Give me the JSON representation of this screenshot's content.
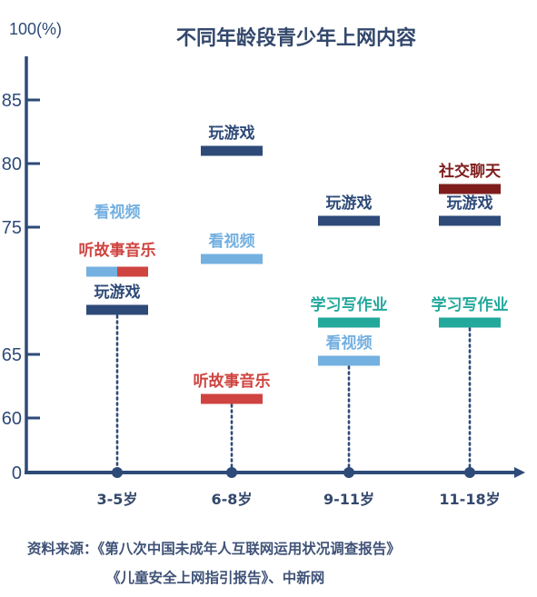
{
  "chart_data": {
    "type": "range-markers",
    "title": "不同年龄段青少年上网内容",
    "y_axis_label": "100(%)",
    "y_ticks": [
      {
        "value": 85,
        "label": "85"
      },
      {
        "value": 80,
        "label": "80"
      },
      {
        "value": 75,
        "label": "75"
      },
      {
        "value": 65,
        "label": "65"
      },
      {
        "value": 60,
        "label": "60"
      },
      {
        "value": 0,
        "label": "0"
      }
    ],
    "categories": [
      "3-5岁",
      "6-8岁",
      "9-11岁",
      "11-18岁"
    ],
    "groups": [
      {
        "category": "3-5岁",
        "markers": [
          {
            "name": "看视频",
            "value": 71.5,
            "color": "#74b0e0",
            "segment": "left"
          },
          {
            "name": "听故事音乐",
            "value": 71.5,
            "color": "#cf4440",
            "segment": "right"
          },
          {
            "name": "玩游戏",
            "value": 68.5,
            "color": "#2e4a78"
          }
        ]
      },
      {
        "category": "6-8岁",
        "markers": [
          {
            "name": "玩游戏",
            "value": 81.0,
            "color": "#2e4a78"
          },
          {
            "name": "看视频",
            "value": 72.5,
            "color": "#74b0e0"
          },
          {
            "name": "听故事音乐",
            "value": 61.5,
            "color": "#cf4440"
          }
        ]
      },
      {
        "category": "9-11岁",
        "markers": [
          {
            "name": "玩游戏",
            "value": 75.5,
            "color": "#2e4a78"
          },
          {
            "name": "学习写作业",
            "value": 67.5,
            "color": "#23a89c"
          },
          {
            "name": "看视频",
            "value": 64.5,
            "color": "#74b0e0"
          }
        ]
      },
      {
        "category": "11-18岁",
        "markers": [
          {
            "name": "社交聊天",
            "value": 78.0,
            "color": "#7f1d1d"
          },
          {
            "name": "玩游戏",
            "value": 75.5,
            "color": "#2e4a78"
          },
          {
            "name": "学习写作业",
            "value": 67.5,
            "color": "#23a89c"
          }
        ]
      }
    ]
  },
  "source": {
    "line1": "资料来源：《第八次中国未成年人互联网运用状况调查报告》",
    "line2": "《儿童安全上网指引报告》、中新网"
  },
  "colors": {
    "axis": "#2e4a78",
    "title": "#33486c",
    "tick": "#2e4a78",
    "category": "#33486c"
  }
}
